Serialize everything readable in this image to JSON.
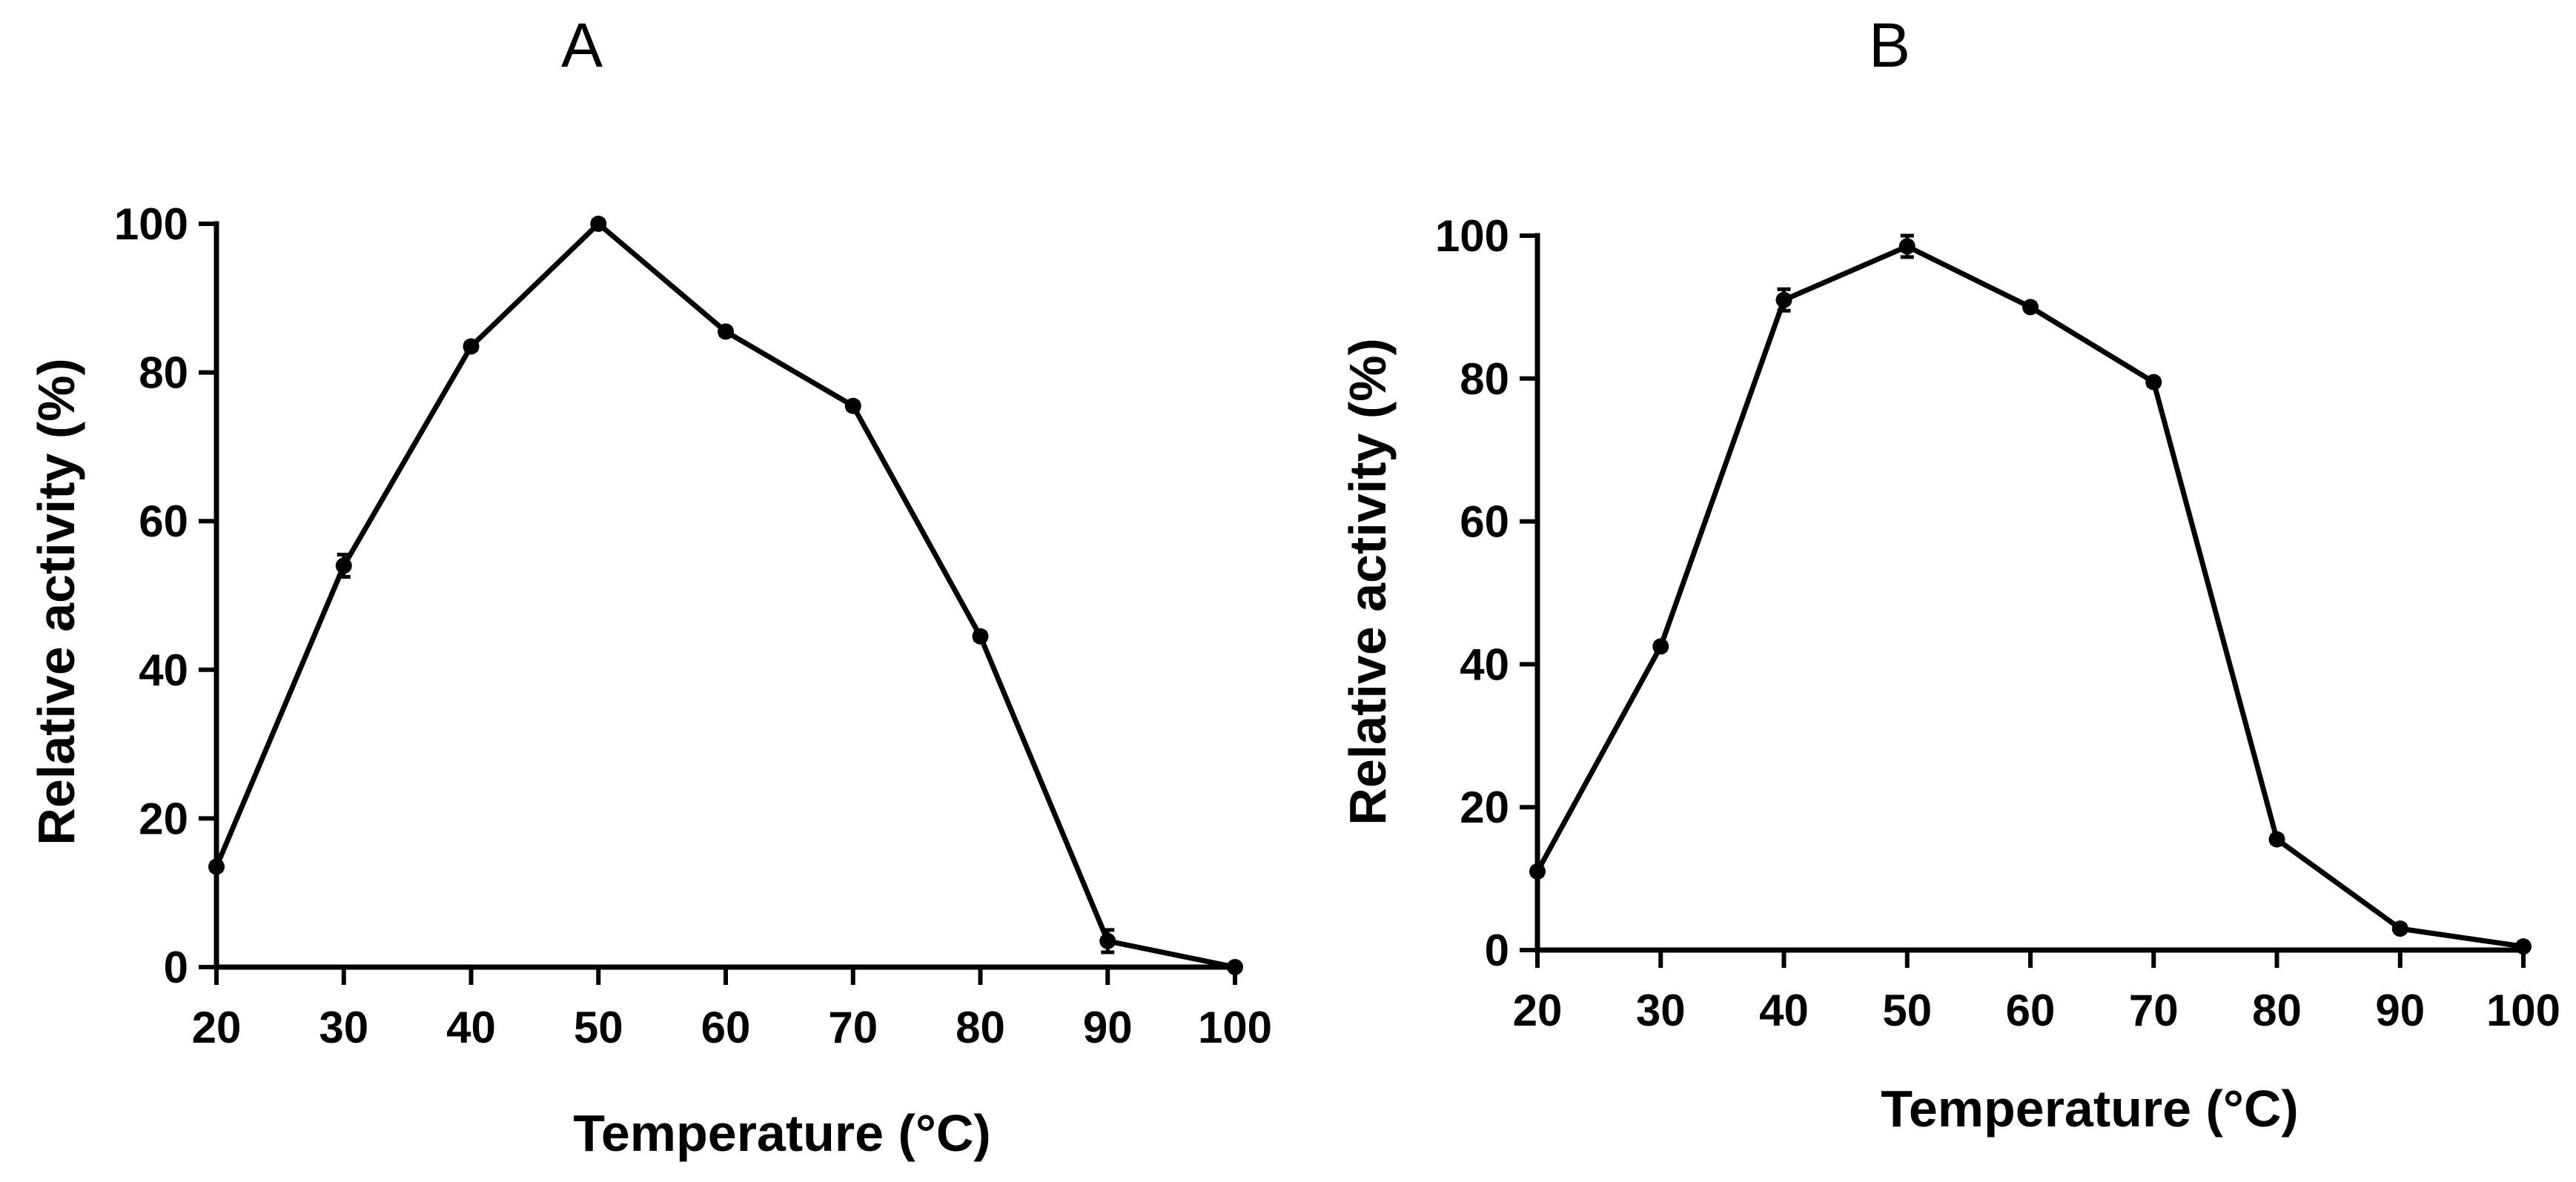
{
  "chart_data": [
    {
      "type": "line",
      "title": "A",
      "xlabel": "Temperature (°C)",
      "ylabel": "Relative activity (%)",
      "x": [
        20,
        30,
        40,
        50,
        60,
        70,
        80,
        90,
        100
      ],
      "x_tick_labels": [
        "20",
        "30",
        "40",
        "50",
        "60",
        "70",
        "80",
        "90",
        "100"
      ],
      "y_tick_labels": [
        "0",
        "20",
        "40",
        "60",
        "80",
        "100"
      ],
      "y_ticks": [
        0,
        20,
        40,
        60,
        80,
        100
      ],
      "xlim": [
        20,
        100
      ],
      "ylim": [
        0,
        100
      ],
      "grid": false,
      "series": [
        {
          "name": "Relative activity",
          "values": [
            13.5,
            54,
            83.5,
            100,
            85.5,
            75.5,
            44.5,
            3.5,
            0
          ],
          "error": [
            0.5,
            1.5,
            0.5,
            0.5,
            0.5,
            0.5,
            0.5,
            1.5,
            0.3
          ]
        }
      ]
    },
    {
      "type": "line",
      "title": "B",
      "xlabel": "Temperature (°C)",
      "ylabel": "Relative activity (%)",
      "x": [
        20,
        30,
        40,
        50,
        60,
        70,
        80,
        90,
        100
      ],
      "x_tick_labels": [
        "20",
        "30",
        "40",
        "50",
        "60",
        "70",
        "80",
        "90",
        "100"
      ],
      "y_tick_labels": [
        "0",
        "20",
        "40",
        "60",
        "80",
        "100"
      ],
      "y_ticks": [
        0,
        20,
        40,
        60,
        80,
        100
      ],
      "xlim": [
        20,
        100
      ],
      "ylim": [
        0,
        100
      ],
      "grid": false,
      "series": [
        {
          "name": "Relative activity",
          "values": [
            11,
            42.5,
            91,
            98.5,
            90,
            79.5,
            15.5,
            3,
            0.5
          ],
          "error": [
            0.5,
            0.5,
            1.5,
            1.5,
            0.5,
            0.5,
            0.5,
            0.5,
            0.3
          ]
        }
      ]
    }
  ]
}
